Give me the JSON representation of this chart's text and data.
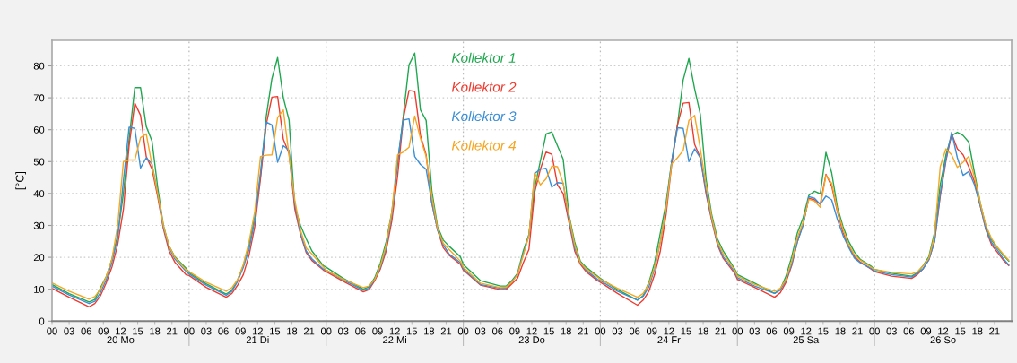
{
  "chart_data": {
    "type": "line",
    "ylabel": "[°C]",
    "x": [
      0,
      3,
      6.5,
      7.5,
      8.5,
      9.5,
      10.5,
      11.5,
      12.5,
      13.5,
      14.5,
      15.5,
      16.5,
      17.5,
      18.5,
      19.5,
      20.5,
      21.5,
      23.5,
      24,
      27,
      30.5,
      31.5,
      32.5,
      33.5,
      34.5,
      35.5,
      36.5,
      37.5,
      38.5,
      39.5,
      40.5,
      41.5,
      42.5,
      43.5,
      44.5,
      45.5,
      47.5,
      48,
      51,
      54.5,
      55.5,
      56.5,
      57.5,
      58.5,
      59.5,
      60.5,
      61.5,
      62.5,
      63.5,
      64.5,
      65.5,
      66.5,
      67.5,
      68.5,
      69.5,
      71.5,
      72,
      75,
      78.5,
      79.5,
      80.5,
      81.5,
      82.5,
      83.5,
      84.5,
      85.5,
      86.5,
      87.5,
      88.5,
      89.5,
      90.5,
      91.5,
      92.5,
      93.5,
      95.5,
      96,
      99,
      102.5,
      103.5,
      104.5,
      105.5,
      106.5,
      107.5,
      108.5,
      109.5,
      110.5,
      111.5,
      112.5,
      113.5,
      114.5,
      115.5,
      116.5,
      117.5,
      119.5,
      120,
      123,
      126.5,
      127.5,
      128.5,
      129.5,
      130.5,
      131.5,
      132.5,
      133.5,
      134.5,
      135.5,
      136.5,
      137.5,
      138.5,
      139.5,
      140.5,
      141.5,
      143.5,
      144,
      147,
      150.5,
      151.5,
      152.5,
      153.5,
      154.5,
      155.5,
      156.5,
      157.5,
      158.5,
      159.5,
      160.5,
      161.5,
      162.5,
      163.5,
      164.5,
      165.5,
      166.5,
      167.5
    ],
    "xlim": [
      0,
      168
    ],
    "xticks": [
      {
        "value": 0,
        "label": "00"
      },
      {
        "value": 3,
        "label": "03"
      },
      {
        "value": 6,
        "label": "06"
      },
      {
        "value": 9,
        "label": "09"
      },
      {
        "value": 12,
        "label": "12"
      },
      {
        "value": 15,
        "label": "15"
      },
      {
        "value": 18,
        "label": "18"
      },
      {
        "value": 21,
        "label": "21"
      },
      {
        "value": 24,
        "label": "00"
      },
      {
        "value": 27,
        "label": "03"
      },
      {
        "value": 30,
        "label": "06"
      },
      {
        "value": 33,
        "label": "09"
      },
      {
        "value": 36,
        "label": "12"
      },
      {
        "value": 39,
        "label": "15"
      },
      {
        "value": 42,
        "label": "18"
      },
      {
        "value": 45,
        "label": "21"
      },
      {
        "value": 48,
        "label": "00"
      },
      {
        "value": 51,
        "label": "03"
      },
      {
        "value": 54,
        "label": "06"
      },
      {
        "value": 57,
        "label": "09"
      },
      {
        "value": 60,
        "label": "12"
      },
      {
        "value": 63,
        "label": "15"
      },
      {
        "value": 66,
        "label": "18"
      },
      {
        "value": 69,
        "label": "21"
      },
      {
        "value": 72,
        "label": "00"
      },
      {
        "value": 75,
        "label": "03"
      },
      {
        "value": 78,
        "label": "06"
      },
      {
        "value": 81,
        "label": "09"
      },
      {
        "value": 84,
        "label": "12"
      },
      {
        "value": 87,
        "label": "15"
      },
      {
        "value": 90,
        "label": "18"
      },
      {
        "value": 93,
        "label": "21"
      },
      {
        "value": 96,
        "label": "00"
      },
      {
        "value": 99,
        "label": "03"
      },
      {
        "value": 102,
        "label": "06"
      },
      {
        "value": 105,
        "label": "09"
      },
      {
        "value": 108,
        "label": "12"
      },
      {
        "value": 111,
        "label": "15"
      },
      {
        "value": 114,
        "label": "18"
      },
      {
        "value": 117,
        "label": "21"
      },
      {
        "value": 120,
        "label": "00"
      },
      {
        "value": 123,
        "label": "03"
      },
      {
        "value": 126,
        "label": "06"
      },
      {
        "value": 129,
        "label": "09"
      },
      {
        "value": 132,
        "label": "12"
      },
      {
        "value": 135,
        "label": "15"
      },
      {
        "value": 138,
        "label": "18"
      },
      {
        "value": 141,
        "label": "21"
      },
      {
        "value": 144,
        "label": "00"
      },
      {
        "value": 147,
        "label": "03"
      },
      {
        "value": 150,
        "label": "06"
      },
      {
        "value": 153,
        "label": "09"
      },
      {
        "value": 156,
        "label": "12"
      },
      {
        "value": 159,
        "label": "15"
      },
      {
        "value": 162,
        "label": "18"
      },
      {
        "value": 165,
        "label": "21"
      }
    ],
    "x2lim": [
      19.5,
      26.5
    ],
    "x2ticks": [
      {
        "value": 20,
        "label": "20 Mo"
      },
      {
        "value": 21,
        "label": "21 Di"
      },
      {
        "value": 22,
        "label": "22 Mi"
      },
      {
        "value": 23,
        "label": "23 Do"
      },
      {
        "value": 24,
        "label": "24 Fr"
      },
      {
        "value": 25,
        "label": "25 Sa"
      },
      {
        "value": 26,
        "label": "26 So"
      },
      {
        "value": 20.5,
        "label": null
      },
      {
        "value": 21.5,
        "label": null
      },
      {
        "value": 22.5,
        "label": null
      },
      {
        "value": 23.5,
        "label": null
      },
      {
        "value": 24.5,
        "label": null
      },
      {
        "value": 25.5,
        "label": null
      }
    ],
    "ylim": [
      0,
      88
    ],
    "yticks": [
      0,
      10,
      20,
      30,
      40,
      50,
      60,
      70,
      80
    ],
    "grid": "y",
    "ref_lines": [
      {
        "axis": "x",
        "value": 24,
        "color": "#bbbbbb",
        "line_style": "dotted"
      },
      {
        "axis": "x",
        "value": 48,
        "color": "#bbbbbb",
        "line_style": "dotted"
      },
      {
        "axis": "x",
        "value": 72,
        "color": "#bbbbbb",
        "line_style": "dotted"
      },
      {
        "axis": "x",
        "value": 96,
        "color": "#bbbbbb",
        "line_style": "dotted"
      },
      {
        "axis": "x",
        "value": 120,
        "color": "#bbbbbb",
        "line_style": "dotted"
      },
      {
        "axis": "x",
        "value": 144,
        "color": "#bbbbbb",
        "line_style": "dotted"
      }
    ],
    "legend": "top",
    "series": [
      {
        "name": "Kollektor 1",
        "color": "#1fa84f",
        "values": [
          11.5,
          8.6,
          6.0,
          6.8,
          10.5,
          14,
          19.5,
          27,
          40,
          57,
          73.2,
          73.2,
          61,
          56.5,
          42,
          30,
          23.5,
          20.2,
          16.5,
          15.2,
          11.7,
          8.5,
          9.7,
          13,
          17.4,
          24,
          33,
          45.5,
          64,
          76,
          82.6,
          70,
          63,
          36,
          30,
          25.8,
          22,
          17.4,
          16.9,
          13.4,
          10,
          10.8,
          13.6,
          18.3,
          24.9,
          34.3,
          49.3,
          64.3,
          80.3,
          84,
          66.2,
          62.9,
          40.8,
          29.6,
          25.4,
          23.5,
          20.2,
          17.8,
          12.7,
          11,
          11,
          12.7,
          15,
          22,
          27.2,
          41.8,
          50.2,
          58.7,
          59.3,
          54.9,
          50.7,
          33.3,
          24.9,
          18.8,
          16.9,
          14.1,
          13.4,
          9.9,
          6.6,
          8,
          12.2,
          18.3,
          27.7,
          37,
          50.2,
          61.5,
          75.6,
          82.3,
          72.8,
          64.8,
          44.6,
          33.3,
          25.8,
          22,
          16.4,
          14.6,
          11.9,
          8.7,
          10,
          14.1,
          20.2,
          27.7,
          32.4,
          39.4,
          40.7,
          39.9,
          52.9,
          46.5,
          35.7,
          29.6,
          24.9,
          21.6,
          19.4,
          17.1,
          16.2,
          15,
          14.1,
          15.2,
          17.4,
          20.2,
          27.7,
          42.7,
          52.1,
          58.2,
          59.2,
          58.2,
          56.1,
          46.5,
          37.1,
          29.6,
          25.4,
          23,
          20.7,
          18.8
        ]
      },
      {
        "name": "Kollektor 2",
        "color": "#ee3b2f",
        "values": [
          10.3,
          7.5,
          4.5,
          5.5,
          8,
          12,
          17,
          24,
          35,
          55,
          68.3,
          64.5,
          51.6,
          47.7,
          39,
          29,
          22,
          18.5,
          14.5,
          14.3,
          10.6,
          7.5,
          8.7,
          11.3,
          14.6,
          20.7,
          29.6,
          44.6,
          61.5,
          70.2,
          70.4,
          57,
          52.5,
          35.2,
          27.2,
          21.5,
          19,
          16,
          15.5,
          12.5,
          9.2,
          9.9,
          12.7,
          16.4,
          22,
          31.5,
          45.5,
          63.4,
          72.3,
          72,
          58.2,
          52.1,
          37,
          28.6,
          23,
          20.7,
          17.8,
          16,
          11.3,
          9.9,
          9.9,
          11.7,
          13.4,
          18.3,
          22.5,
          40.4,
          47.6,
          53,
          52.3,
          42.7,
          39.9,
          31,
          22,
          17.8,
          15.5,
          12.7,
          12.2,
          8.7,
          5,
          6.6,
          9.4,
          14.6,
          22,
          33.3,
          49.3,
          61.5,
          68.3,
          68.5,
          55.4,
          51.2,
          39.9,
          31.5,
          23.9,
          19.7,
          15,
          13.1,
          10.6,
          7.5,
          8.9,
          12.2,
          17.4,
          24.9,
          30.5,
          38.5,
          38,
          36.6,
          46,
          42.3,
          34.3,
          27.7,
          23.5,
          20.2,
          18.5,
          16.2,
          15.5,
          14.1,
          13.4,
          14.6,
          16.4,
          19.2,
          24.9,
          39,
          50.2,
          58.7,
          54,
          52.1,
          48.4,
          43.7,
          36.2,
          28.6,
          23.9,
          21.6,
          19.2,
          17.4
        ]
      },
      {
        "name": "Kollektor 3",
        "color": "#3b8fd6",
        "values": [
          11,
          8.2,
          5.5,
          6.2,
          9,
          13,
          18.5,
          26,
          44,
          60.8,
          60.4,
          48,
          51.2,
          49.3,
          40,
          29.5,
          23,
          19.5,
          15.5,
          14.8,
          11.3,
          8.1,
          9.4,
          12.5,
          16.9,
          22.5,
          31.5,
          46.5,
          62.4,
          61.5,
          49.8,
          55,
          53.5,
          37,
          27.5,
          22,
          19.5,
          16.3,
          16,
          12.9,
          9.7,
          10.3,
          13.1,
          16.9,
          23,
          33.3,
          50.2,
          63,
          63.4,
          51.6,
          49.1,
          47.6,
          37,
          28.6,
          23.9,
          21.1,
          18.3,
          16.4,
          11.5,
          10.3,
          10.3,
          12.4,
          14.6,
          21.1,
          26.8,
          46.3,
          47.6,
          47.9,
          42,
          43.4,
          43.2,
          31.9,
          23,
          18.3,
          16,
          13.1,
          12.7,
          9.4,
          6.6,
          7.8,
          10.8,
          16.4,
          24.9,
          35.2,
          50.2,
          60.6,
          60.4,
          50,
          54,
          51.2,
          40.8,
          31.9,
          24.4,
          20.2,
          15.5,
          13.6,
          11,
          8.7,
          9.7,
          12.9,
          17.8,
          24.9,
          30,
          39,
          38.5,
          36.6,
          39.2,
          38,
          31.9,
          26.8,
          23,
          19.7,
          18.3,
          16.4,
          15.7,
          14.6,
          13.8,
          15,
          16.4,
          19.2,
          24.9,
          39.9,
          50.7,
          59.2,
          51.2,
          45.7,
          46.9,
          42.7,
          36.2,
          28.8,
          24.6,
          22.3,
          19.7,
          17.6
        ]
      },
      {
        "name": "Kollektor 4",
        "color": "#f5a623",
        "values": [
          12,
          9.4,
          6.9,
          7.7,
          10,
          14,
          19.5,
          30,
          50,
          50.5,
          50.5,
          57.5,
          58.7,
          49,
          40,
          30,
          23.5,
          20,
          16,
          15.5,
          12.2,
          9.4,
          10.5,
          13,
          17.8,
          24.9,
          34.3,
          51.6,
          52,
          52.1,
          63.8,
          66.2,
          52,
          38,
          28.5,
          23,
          21,
          17,
          16,
          13.1,
          10.5,
          11,
          13.1,
          17.4,
          23.9,
          34.3,
          52.1,
          53,
          54.5,
          64.3,
          57.3,
          51.6,
          39,
          29.1,
          24.4,
          22.5,
          18.8,
          16.9,
          11.9,
          10.5,
          10.6,
          12.2,
          14.6,
          20.7,
          26.8,
          46.5,
          42.7,
          44.6,
          48.6,
          48.4,
          43.2,
          32.9,
          23.9,
          18.3,
          16.4,
          13.8,
          13.1,
          10.3,
          7.5,
          8.7,
          11.7,
          16.9,
          24.9,
          35.2,
          49.3,
          51.2,
          53.5,
          62.9,
          64.5,
          54,
          42.7,
          32.4,
          24.9,
          21.1,
          16,
          14.1,
          11.5,
          9.4,
          10.3,
          13.1,
          18.8,
          26.3,
          31,
          38.2,
          37.6,
          35.7,
          45.7,
          43.2,
          34.7,
          28.6,
          23.9,
          20.7,
          19.1,
          16.8,
          16.2,
          15.3,
          14.8,
          15.5,
          17.4,
          19.7,
          26.8,
          48.4,
          54,
          52.1,
          48.2,
          49.8,
          51.6,
          45.1,
          37.1,
          30,
          25.8,
          23.2,
          21.1,
          19.1
        ]
      }
    ]
  }
}
